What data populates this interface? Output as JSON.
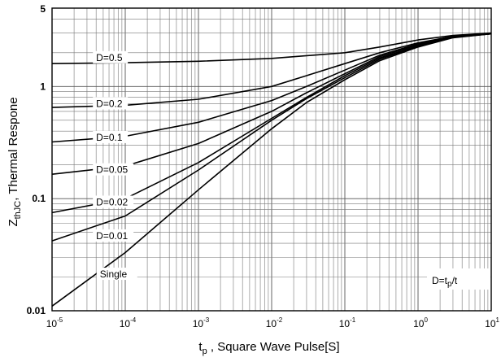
{
  "chart_data": {
    "type": "line",
    "x_scale": "log",
    "y_scale": "log",
    "xlim": [
      1e-05,
      10
    ],
    "ylim": [
      0.01,
      5
    ],
    "x_ticks": [
      {
        "value": 1e-05,
        "base": "10",
        "exp": "-5"
      },
      {
        "value": 0.0001,
        "base": "10",
        "exp": "-4"
      },
      {
        "value": 0.001,
        "base": "10",
        "exp": "-3"
      },
      {
        "value": 0.01,
        "base": "10",
        "exp": "-2"
      },
      {
        "value": 0.1,
        "base": "10",
        "exp": "-1"
      },
      {
        "value": 1,
        "base": "10",
        "exp": "0"
      },
      {
        "value": 10,
        "base": "10",
        "exp": "1"
      }
    ],
    "y_ticks": [
      {
        "value": 0.01,
        "label": "0.01"
      },
      {
        "value": 0.1,
        "label": "0.1"
      },
      {
        "value": 1,
        "label": "1"
      },
      {
        "value": 5,
        "label": "5"
      }
    ],
    "ylabel": {
      "main": "Z",
      "sub": "thJC",
      "rest": ", Thermal Respone"
    },
    "xlabel": {
      "main": "t",
      "sub": "p",
      "rest": " ,  Square Wave Pulse[S]"
    },
    "annotation": {
      "pre": "D=t",
      "sub": "p",
      "post": "/t"
    },
    "grid": true,
    "series": [
      {
        "name": "D=0.5",
        "label_x": 4e-05,
        "label_y": 1.75,
        "x": [
          1e-05,
          0.0001,
          0.001,
          0.01,
          0.1,
          0.3,
          1,
          3,
          10
        ],
        "y": [
          1.6,
          1.63,
          1.68,
          1.78,
          2.0,
          2.25,
          2.6,
          2.85,
          3.0
        ]
      },
      {
        "name": "D=0.2",
        "label_x": 4e-05,
        "label_y": 0.68,
        "x": [
          1e-05,
          0.0001,
          0.001,
          0.01,
          0.03,
          0.1,
          0.3,
          1,
          3,
          10
        ],
        "y": [
          0.65,
          0.68,
          0.77,
          1.0,
          1.25,
          1.6,
          2.0,
          2.45,
          2.8,
          2.95
        ]
      },
      {
        "name": "D=0.1",
        "label_x": 4e-05,
        "label_y": 0.34,
        "x": [
          1e-05,
          0.0001,
          0.001,
          0.01,
          0.03,
          0.1,
          0.3,
          1,
          3,
          10
        ],
        "y": [
          0.32,
          0.36,
          0.48,
          0.75,
          1.0,
          1.4,
          1.9,
          2.4,
          2.8,
          2.95
        ]
      },
      {
        "name": "D=0.05",
        "label_x": 4e-05,
        "label_y": 0.175,
        "x": [
          1e-05,
          0.0001,
          0.001,
          0.01,
          0.03,
          0.1,
          0.3,
          1,
          3,
          10
        ],
        "y": [
          0.165,
          0.195,
          0.31,
          0.6,
          0.88,
          1.3,
          1.85,
          2.35,
          2.78,
          2.95
        ]
      },
      {
        "name": "D=0.02",
        "label_x": 4e-05,
        "label_y": 0.09,
        "x": [
          1e-05,
          0.0001,
          0.001,
          0.01,
          0.03,
          0.1,
          0.3,
          1,
          3,
          10
        ],
        "y": [
          0.075,
          0.1,
          0.21,
          0.52,
          0.8,
          1.25,
          1.8,
          2.3,
          2.75,
          2.95
        ]
      },
      {
        "name": "D=0.01",
        "label_x": 4e-05,
        "label_y": 0.045,
        "x": [
          1e-05,
          0.0001,
          0.001,
          0.01,
          0.03,
          0.1,
          0.3,
          1,
          3,
          10
        ],
        "y": [
          0.042,
          0.07,
          0.18,
          0.5,
          0.78,
          1.2,
          1.75,
          2.28,
          2.75,
          2.95
        ]
      },
      {
        "name": "Single",
        "label_x": 4.5e-05,
        "label_y": 0.0205,
        "x": [
          1e-05,
          0.0001,
          0.001,
          0.01,
          0.03,
          0.1,
          0.3,
          1,
          3,
          10
        ],
        "y": [
          0.011,
          0.033,
          0.12,
          0.42,
          0.72,
          1.15,
          1.7,
          2.25,
          2.72,
          2.95
        ]
      }
    ]
  }
}
